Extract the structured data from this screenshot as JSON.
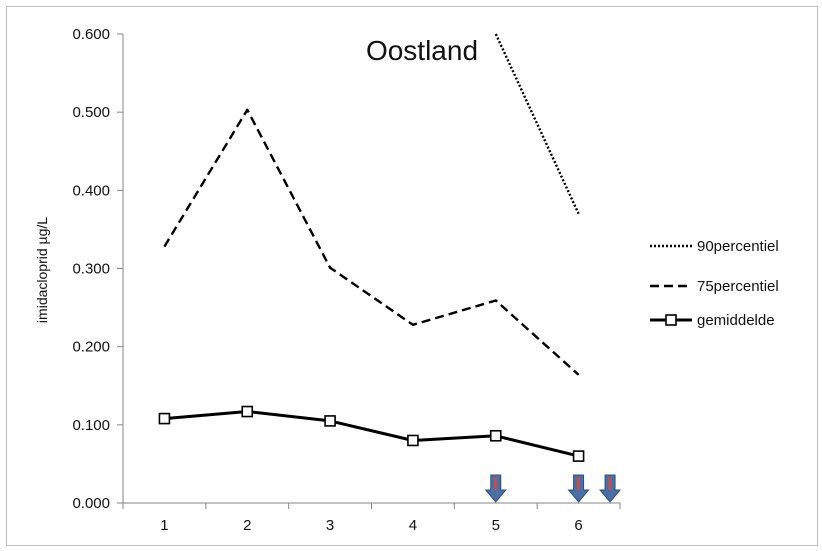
{
  "chart_data": {
    "type": "line",
    "title": "Oostland",
    "xlabel": "",
    "ylabel": "imidacloprid µg/L",
    "categories": [
      "1",
      "2",
      "3",
      "4",
      "5",
      "6"
    ],
    "y_tick_labels": [
      "0.000",
      "0.100",
      "0.200",
      "0.300",
      "0.400",
      "0.500",
      "0.600"
    ],
    "ylim": [
      0,
      0.6
    ],
    "grid": false,
    "legend_position": "right",
    "series": [
      {
        "name": "90percentiel",
        "style": "dotted",
        "marker": "none",
        "x": [
          5,
          6
        ],
        "values": [
          0.6,
          0.37
        ]
      },
      {
        "name": "75percentiel",
        "style": "dashed",
        "marker": "none",
        "x": [
          1,
          2,
          3,
          4,
          5,
          6
        ],
        "values": [
          0.328,
          0.503,
          0.301,
          0.228,
          0.259,
          0.164
        ]
      },
      {
        "name": "gemiddelde",
        "style": "solid",
        "marker": "square",
        "x": [
          1,
          2,
          3,
          4,
          5,
          6
        ],
        "values": [
          0.108,
          0.117,
          0.105,
          0.08,
          0.086,
          0.06
        ]
      }
    ],
    "annotations": [
      {
        "type": "arrow-down",
        "x": 5.0,
        "color": "#4a6fa5",
        "accent": "#c0504d"
      },
      {
        "type": "arrow-down",
        "x": 6.0,
        "color": "#4a6fa5",
        "accent": "#c0504d"
      },
      {
        "type": "arrow-down",
        "x": 6.38,
        "color": "#4a6fa5",
        "accent": "#c0504d"
      }
    ]
  }
}
